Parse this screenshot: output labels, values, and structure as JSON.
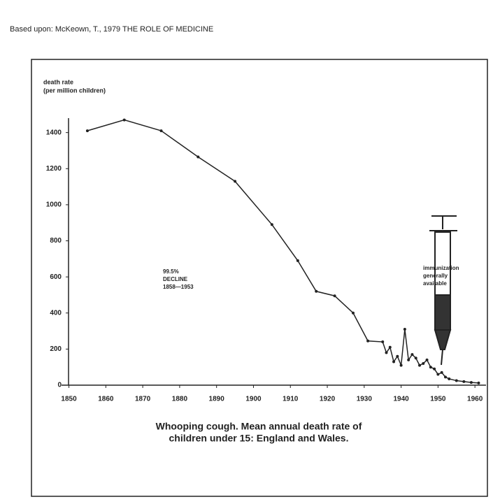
{
  "header": "Based upon: McKeown, T., 1979 THE ROLE OF MEDICINE",
  "chart_data": {
    "type": "line",
    "ylabel": [
      "death rate",
      "(per million children)"
    ],
    "title": [
      "Whooping cough. Mean annual death rate of",
      "children under 15: England and Wales."
    ],
    "annotations": [
      [
        "99.5%",
        "DECLINE",
        "1858—1953"
      ],
      [
        "immunization",
        "generally",
        "available"
      ]
    ],
    "x": [
      1855,
      1865,
      1875,
      1885,
      1895,
      1905,
      1912,
      1917,
      1922,
      1927,
      1931,
      1935,
      1936,
      1937,
      1938,
      1939,
      1940,
      1941,
      1942,
      1943,
      1944,
      1945,
      1946,
      1947,
      1948,
      1949,
      1950,
      1951,
      1952,
      1953,
      1955,
      1957,
      1959,
      1961
    ],
    "series": [
      {
        "name": "death rate",
        "color": "#222",
        "values": [
          1410,
          1470,
          1410,
          1265,
          1130,
          890,
          690,
          520,
          495,
          400,
          245,
          240,
          180,
          210,
          130,
          160,
          110,
          310,
          140,
          170,
          150,
          110,
          120,
          140,
          100,
          90,
          60,
          70,
          45,
          35,
          25,
          20,
          15,
          12
        ]
      }
    ],
    "xlim": [
      1848,
      1963
    ],
    "ylim": [
      0,
      1480
    ],
    "xticks": [
      1850,
      1860,
      1870,
      1880,
      1890,
      1900,
      1910,
      1920,
      1930,
      1940,
      1950,
      1960
    ],
    "yticks": [
      0,
      200,
      400,
      600,
      800,
      1000,
      1200,
      1400
    ]
  }
}
